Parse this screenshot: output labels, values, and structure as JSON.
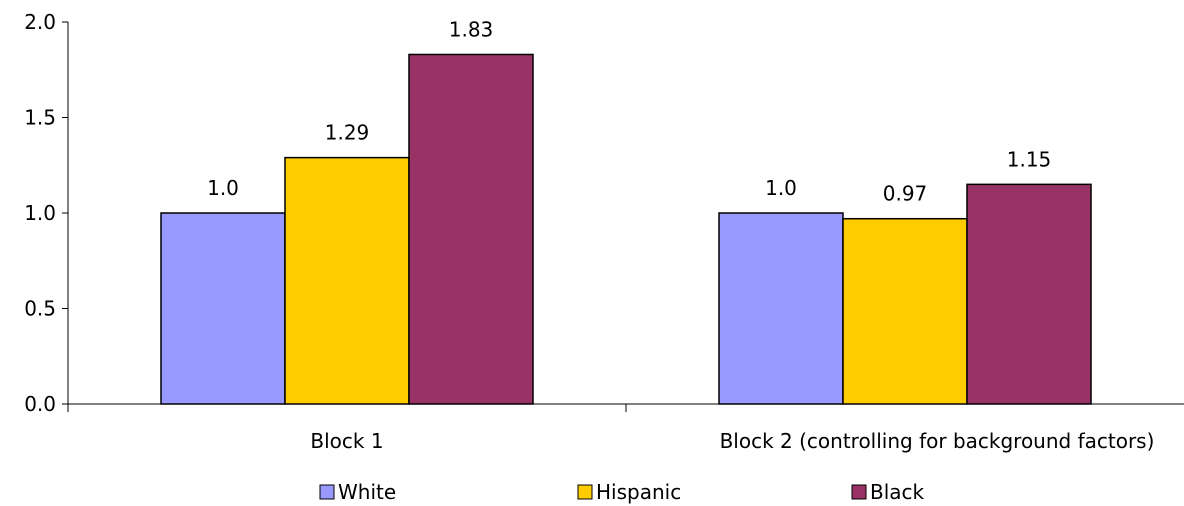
{
  "chart_data": {
    "type": "bar",
    "categories": [
      "Block 1",
      "Block 2 (controlling for background factors)"
    ],
    "series": [
      {
        "name": "White",
        "values": [
          1.0,
          1.0
        ],
        "labels": [
          "1.0",
          "1.0"
        ],
        "color": "#9999ff"
      },
      {
        "name": "Hispanic",
        "values": [
          1.29,
          0.97
        ],
        "labels": [
          "1.29",
          "0.97"
        ],
        "color": "#ffcc00"
      },
      {
        "name": "Black",
        "values": [
          1.83,
          1.15
        ],
        "labels": [
          "1.83",
          "1.15"
        ],
        "color": "#993366"
      }
    ],
    "ylim": [
      0,
      2.0
    ],
    "yticks": [
      "0.0",
      "0.5",
      "1.0",
      "1.5",
      "2.0"
    ],
    "grid": false,
    "legend": "bottom"
  }
}
